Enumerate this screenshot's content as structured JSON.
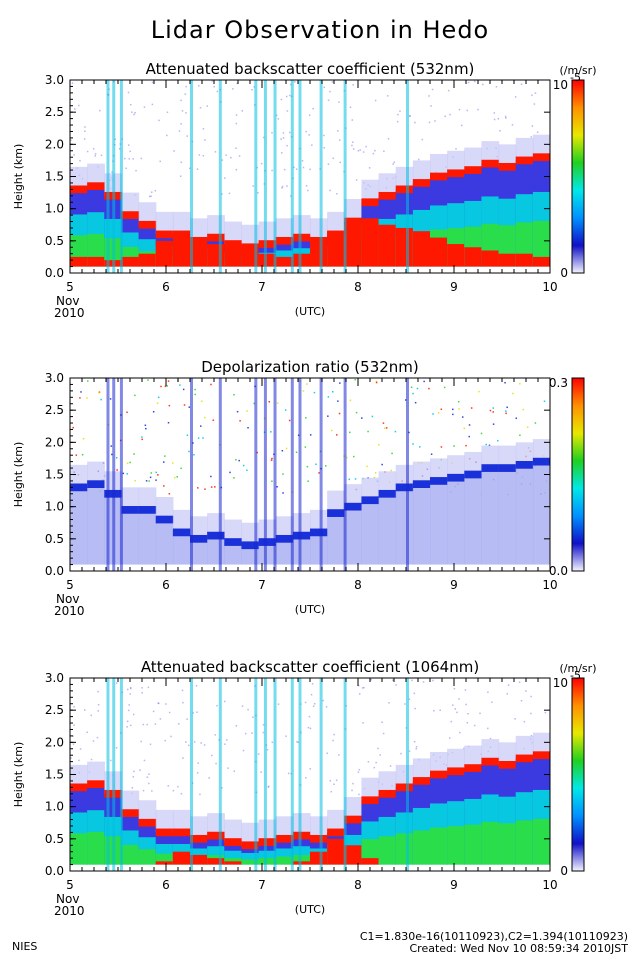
{
  "title": "Lidar Observation in Hedo",
  "footer": {
    "left": "NIES",
    "calibration": "C1=1.830e-16(10110923),C2=1.394(10110923)",
    "created": "Created: Wed Nov 10 08:59:34 2010JST"
  },
  "colors": {
    "background_fill": "#ffffff",
    "low": "#3a3ae0",
    "mid_cyan": "#00e0e0",
    "mid_green": "#30e030",
    "high": "#ff1800",
    "colorbar_stops": [
      "#f4f4ff",
      "#1010c8",
      "#0090ff",
      "#00e8e8",
      "#20d020",
      "#e8e800",
      "#ff9000",
      "#ff0000"
    ]
  },
  "chart_data": [
    {
      "type": "heatmap",
      "title": "Attenuated backscatter coefficient (532nm)",
      "ylabel": "Height (km)",
      "xlabel": "(UTC)",
      "x_date_label": [
        "Nov",
        "2010"
      ],
      "xlim": [
        5,
        10
      ],
      "ylim": [
        0,
        3
      ],
      "x_ticks": [
        "5",
        "6",
        "7",
        "8",
        "9",
        "10"
      ],
      "y_ticks": [
        "0.0",
        "0.5",
        "1.0",
        "1.5",
        "2.0",
        "2.5",
        "3.0"
      ],
      "colorbar": {
        "unit": "(/m/sr)",
        "top_label": "10",
        "top_exp": "-5",
        "bottom_label": "0",
        "scale": "linear"
      },
      "grid": false,
      "cloud_top_km": [
        1.3,
        1.35,
        1.2,
        0.9,
        0.75,
        0.6,
        0.6,
        0.5,
        0.55,
        0.45,
        0.4,
        0.45,
        0.5,
        0.55,
        0.5,
        0.6,
        0.8,
        1.1,
        1.2,
        1.3,
        1.4,
        1.5,
        1.55,
        1.6,
        1.7,
        1.65,
        1.75,
        1.8
      ],
      "strong_layer_top_km": [
        0.25,
        0.25,
        0.2,
        0.25,
        0.3,
        0.5,
        0.55,
        0.45,
        0.45,
        0.4,
        0.35,
        0.3,
        0.25,
        0.3,
        0.5,
        0.65,
        0.8,
        0.85,
        0.75,
        0.7,
        0.65,
        0.55,
        0.45,
        0.4,
        0.35,
        0.3,
        0.3,
        0.25
      ]
    },
    {
      "type": "heatmap",
      "title": "Depolarization ratio (532nm)",
      "ylabel": "Height (km)",
      "xlabel": "(UTC)",
      "x_date_label": [
        "Nov",
        "2010"
      ],
      "xlim": [
        5,
        10
      ],
      "ylim": [
        0,
        3
      ],
      "x_ticks": [
        "5",
        "6",
        "7",
        "8",
        "9",
        "10"
      ],
      "y_ticks": [
        "0.0",
        "0.5",
        "1.0",
        "1.5",
        "2.0",
        "2.5",
        "3.0"
      ],
      "colorbar": {
        "unit": "",
        "top_label": "0.3",
        "top_exp": "",
        "bottom_label": "0.0",
        "scale": "linear"
      },
      "grid": false,
      "cloud_top_km": [
        1.3,
        1.35,
        1.2,
        0.95,
        0.95,
        0.8,
        0.6,
        0.5,
        0.55,
        0.45,
        0.4,
        0.45,
        0.5,
        0.55,
        0.6,
        0.9,
        1.0,
        1.1,
        1.2,
        1.3,
        1.35,
        1.4,
        1.45,
        1.5,
        1.6,
        1.6,
        1.65,
        1.7
      ]
    },
    {
      "type": "heatmap",
      "title": "Attenuated backscatter coefficient (1064nm)",
      "ylabel": "Height (km)",
      "xlabel": "(UTC)",
      "x_date_label": [
        "Nov",
        "2010"
      ],
      "xlim": [
        5,
        10
      ],
      "ylim": [
        0,
        3
      ],
      "x_ticks": [
        "5",
        "6",
        "7",
        "8",
        "9",
        "10"
      ],
      "y_ticks": [
        "0.0",
        "0.5",
        "1.0",
        "1.5",
        "2.0",
        "2.5",
        "3.0"
      ],
      "colorbar": {
        "unit": "(/m/sr)",
        "top_label": "10",
        "top_exp": "-5",
        "bottom_label": "0",
        "scale": "linear"
      },
      "grid": false,
      "cloud_top_km": [
        1.3,
        1.35,
        1.2,
        0.9,
        0.75,
        0.6,
        0.6,
        0.5,
        0.55,
        0.45,
        0.4,
        0.45,
        0.5,
        0.55,
        0.5,
        0.6,
        0.8,
        1.1,
        1.2,
        1.3,
        1.4,
        1.5,
        1.55,
        1.6,
        1.7,
        1.65,
        1.75,
        1.8
      ],
      "strong_layer_top_km": [
        0.1,
        0.1,
        0.1,
        0.1,
        0.1,
        0.15,
        0.3,
        0.25,
        0.2,
        0.15,
        0.1,
        0.1,
        0.1,
        0.15,
        0.3,
        0.5,
        0.4,
        0.2,
        0.1,
        0.1,
        0.1,
        0.1,
        0.1,
        0.1,
        0.1,
        0.1,
        0.1,
        0.1
      ]
    }
  ]
}
